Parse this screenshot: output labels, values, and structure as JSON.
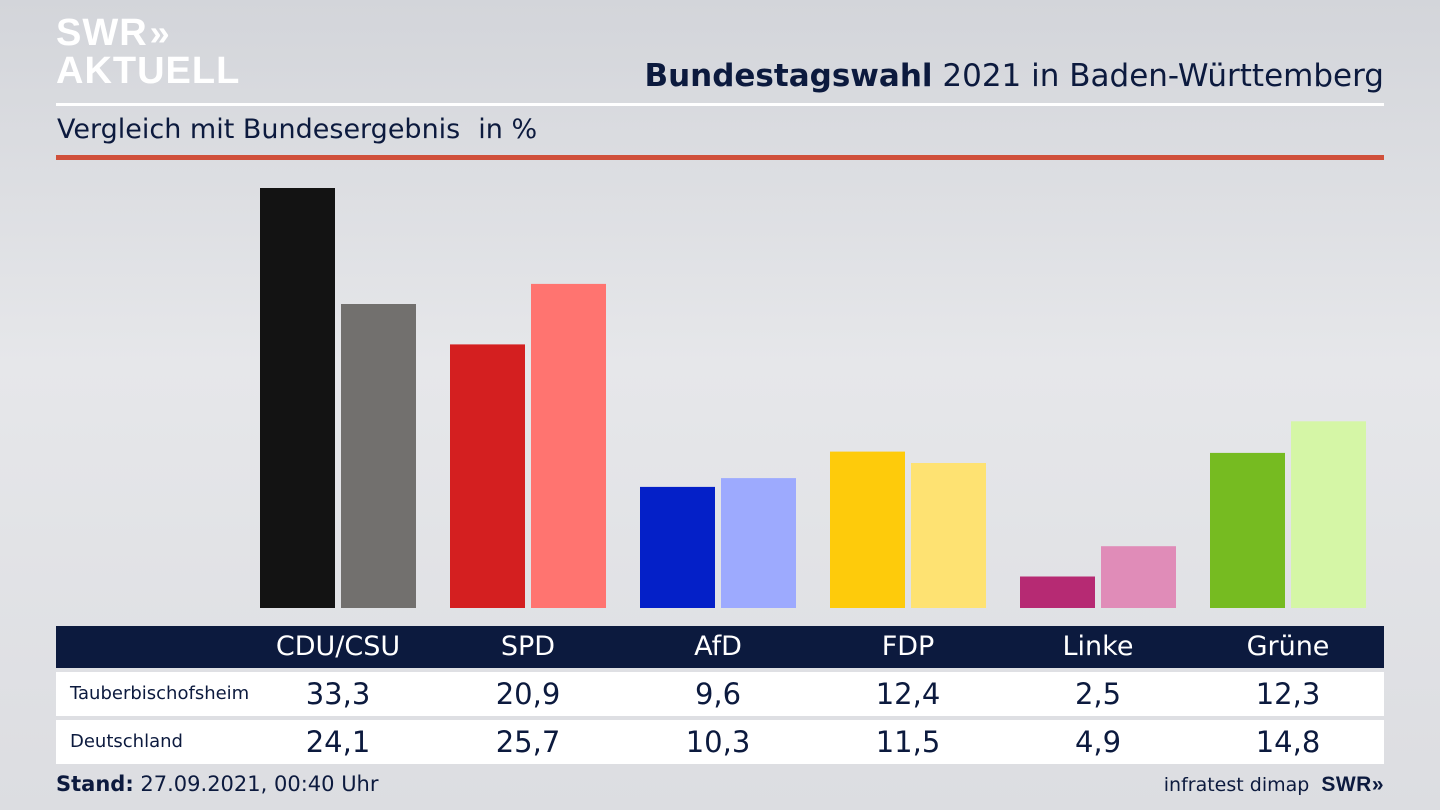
{
  "logo": {
    "line1": "SWR",
    "line2": "AKTUELL",
    "chevrons": "»"
  },
  "header": {
    "title_bold": "Bundestagswahl",
    "title_rest": "2021 in Baden-Württemberg",
    "subtitle": "Vergleich mit Bundesergebnis",
    "unit": "in %"
  },
  "chart_data": {
    "type": "bar",
    "categories": [
      "CDU/CSU",
      "SPD",
      "AfD",
      "FDP",
      "Linke",
      "Grüne"
    ],
    "series": [
      {
        "name": "Tauberbischofsheim",
        "values": [
          33.3,
          20.9,
          9.6,
          12.4,
          2.5,
          12.3
        ],
        "colors": [
          "#131313",
          "#d41f20",
          "#0420c8",
          "#fecb0b",
          "#b62a73",
          "#76bb21"
        ]
      },
      {
        "name": "Deutschland",
        "values": [
          24.1,
          25.7,
          10.3,
          11.5,
          4.9,
          14.8
        ],
        "colors": [
          "#72706e",
          "#ff7470",
          "#9daafe",
          "#fee272",
          "#e08cb8",
          "#d5f6a6"
        ]
      }
    ],
    "ylim": [
      0,
      33.3
    ],
    "xlabel": "",
    "ylabel": "",
    "grid": false,
    "labels": {
      "rows": [
        {
          "label": "Tauberbischofsheim",
          "values": [
            "33,3",
            "20,9",
            "9,6",
            "12,4",
            "2,5",
            "12,3"
          ]
        },
        {
          "label": "Deutschland",
          "values": [
            "24,1",
            "25,7",
            "10,3",
            "11,5",
            "4,9",
            "14,8"
          ]
        }
      ]
    }
  },
  "footer": {
    "stand_label": "Stand:",
    "stand_value": "27.09.2021, 00:40 Uhr",
    "source": "infratest dimap",
    "brand": "SWR",
    "brand_chevrons": "»"
  }
}
